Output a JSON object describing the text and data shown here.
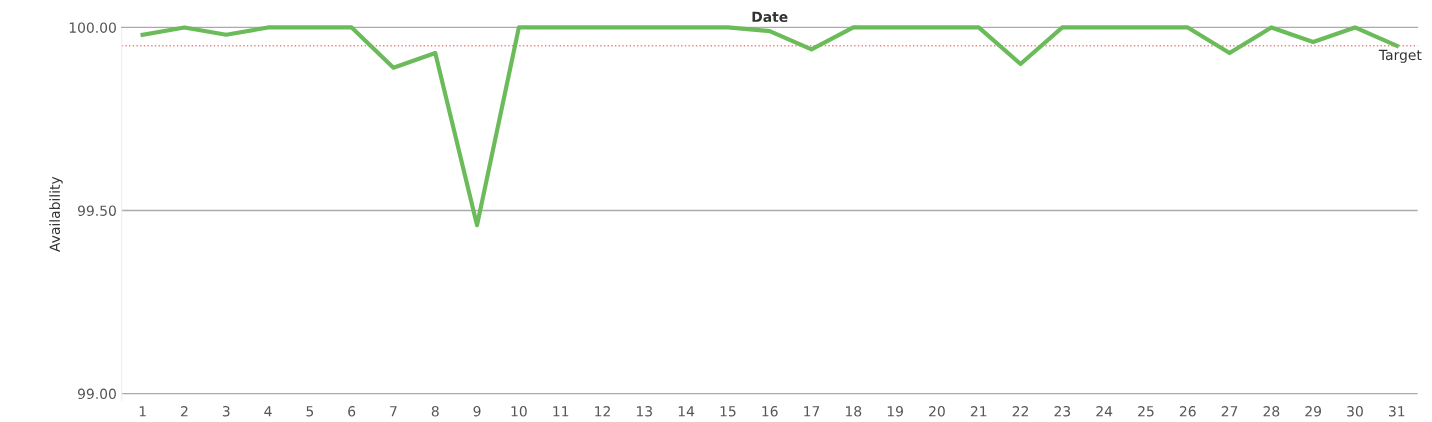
{
  "chart_data": {
    "type": "line",
    "xlabel": "Date",
    "ylabel": "Availability",
    "categories": [
      "1",
      "2",
      "3",
      "4",
      "5",
      "6",
      "7",
      "8",
      "9",
      "10",
      "11",
      "12",
      "13",
      "14",
      "15",
      "16",
      "17",
      "18",
      "19",
      "20",
      "21",
      "22",
      "23",
      "24",
      "25",
      "26",
      "27",
      "28",
      "29",
      "30",
      "31"
    ],
    "series": [
      {
        "color": "#6cbb5a",
        "values": [
          99.98,
          100,
          99.98,
          100,
          100,
          100,
          99.89,
          99.93,
          99.46,
          100,
          100,
          100,
          100,
          100,
          100,
          99.99,
          99.94,
          100,
          100,
          100,
          100,
          99.9,
          100,
          100,
          100,
          100,
          99.93,
          100,
          99.96,
          100,
          99.95
        ]
      }
    ],
    "ylim": [
      98.98,
      100
    ],
    "yticks": [
      {
        "value": 99,
        "label": "99.00"
      },
      {
        "value": 99.5,
        "label": "99.50"
      },
      {
        "value": 100,
        "label": "100.00"
      }
    ],
    "ref_lines": [
      {
        "axis": "y",
        "value": 99.95,
        "label": "Target",
        "color": "#f08080",
        "line_style": "dotted"
      }
    ],
    "grid": "y",
    "marker": "none",
    "line_style": "solid",
    "legend": false
  }
}
